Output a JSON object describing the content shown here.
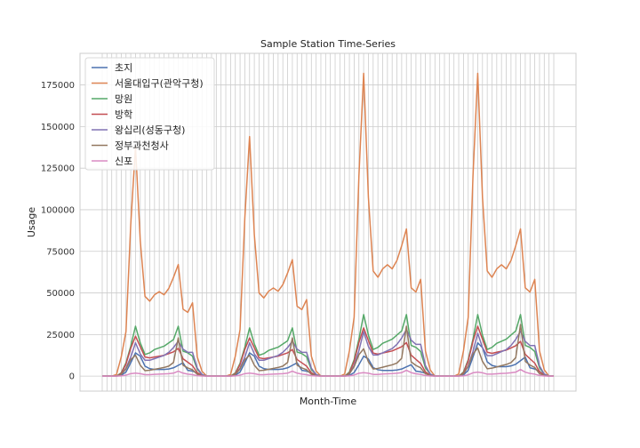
{
  "chart_data": {
    "type": "line",
    "title": "Sample Station Time-Series",
    "xlabel": "Month-Time",
    "ylabel": "Usage",
    "ylim": [
      -9000,
      194000
    ],
    "yticks": [
      0,
      25000,
      50000,
      75000,
      100000,
      125000,
      150000,
      175000
    ],
    "ytick_labels": [
      "0",
      "25000",
      "50000",
      "75000",
      "100000",
      "125000",
      "150000",
      "175000"
    ],
    "x_count": 96,
    "grid": true,
    "legend_position": "top-left",
    "colors": [
      "#4c72b0",
      "#dd8452",
      "#55a868",
      "#c44e52",
      "#8172b3",
      "#937860",
      "#da8bc3"
    ],
    "series": [
      {
        "name": "초지",
        "color": "#4c72b0",
        "pattern": [
          0,
          0,
          0,
          0,
          500,
          2500,
          8000,
          14000,
          12000,
          6000,
          4500,
          4000,
          4000,
          4000,
          4300,
          5000,
          6500,
          8000,
          3500,
          3000,
          2000,
          500,
          0,
          0
        ],
        "peaks": [
          14000,
          14000,
          12000,
          20000
        ]
      },
      {
        "name": "서울대입구(관악구청)",
        "color": "#dd8452",
        "pattern": [
          0,
          0,
          0,
          1000,
          12000,
          28000,
          95000,
          144000,
          85000,
          50000,
          47000,
          51000,
          53000,
          51000,
          55000,
          62000,
          70000,
          42000,
          40000,
          46000,
          12000,
          3000,
          0,
          0
        ],
        "peaks": [
          138000,
          144000,
          182000,
          182000
        ]
      },
      {
        "name": "망원",
        "color": "#55a868",
        "pattern": [
          0,
          0,
          0,
          0,
          2000,
          8000,
          18000,
          30000,
          20000,
          13000,
          14000,
          16000,
          17000,
          18000,
          20000,
          22000,
          30000,
          15000,
          14000,
          12000,
          4000,
          1000,
          0,
          0
        ],
        "peaks": [
          30000,
          29000,
          37000,
          37000
        ]
      },
      {
        "name": "방학",
        "color": "#c44e52",
        "pattern": [
          0,
          0,
          0,
          0,
          1500,
          7000,
          16000,
          23000,
          17000,
          11000,
          10500,
          11000,
          11500,
          12000,
          13000,
          14000,
          16000,
          10000,
          8000,
          6000,
          2000,
          500,
          0,
          0
        ],
        "peaks": [
          24000,
          23000,
          29000,
          30000
        ]
      },
      {
        "name": "왕십리(성동구청)",
        "color": "#8172b3",
        "pattern": [
          0,
          0,
          0,
          0,
          1000,
          5000,
          12000,
          21000,
          14000,
          10000,
          10000,
          11000,
          12000,
          13000,
          15000,
          18000,
          22000,
          17000,
          15000,
          15000,
          5000,
          1000,
          0,
          0
        ],
        "peaks": [
          21000,
          21000,
          28000,
          27000
        ]
      },
      {
        "name": "정부과천청사",
        "color": "#937860",
        "pattern": [
          0,
          0,
          0,
          0,
          2000,
          8000,
          18000,
          23000,
          12000,
          6000,
          6500,
          7500,
          8500,
          9500,
          11000,
          15000,
          42000,
          12000,
          9000,
          7000,
          2000,
          500,
          0,
          0
        ],
        "peaks": [
          23000,
          23000,
          30000,
          31000
        ]
      },
      {
        "name": "신포",
        "color": "#da8bc3",
        "pattern": [
          0,
          0,
          0,
          0,
          200,
          1000,
          2500,
          3000,
          2500,
          1500,
          1500,
          1800,
          2000,
          2200,
          2500,
          3000,
          5000,
          3000,
          2000,
          1500,
          500,
          100,
          0,
          0
        ],
        "peaks": [
          3000,
          3000,
          3500,
          4000
        ]
      }
    ]
  }
}
